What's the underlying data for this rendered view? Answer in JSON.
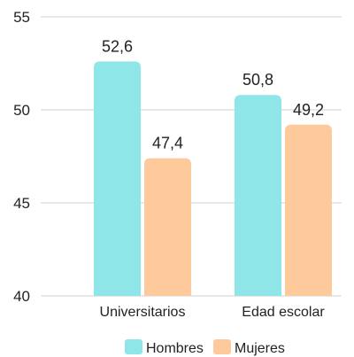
{
  "chart_data": {
    "type": "bar",
    "title": "",
    "xlabel": "",
    "ylabel": "",
    "ylim": [
      40,
      55
    ],
    "yticks": [
      40,
      45,
      50,
      55
    ],
    "categories": [
      "Universitarios",
      "Edad escolar"
    ],
    "series": [
      {
        "name": "Hombres",
        "values": [
          52.6,
          50.8
        ],
        "labels": [
          "52,6",
          "50,8"
        ],
        "color": "#8fe6e8"
      },
      {
        "name": "Mujeres",
        "values": [
          47.4,
          49.2
        ],
        "labels": [
          "47,4",
          "49,2"
        ],
        "color": "#fec99b"
      }
    ],
    "grid": true,
    "legend_position": "bottom"
  }
}
